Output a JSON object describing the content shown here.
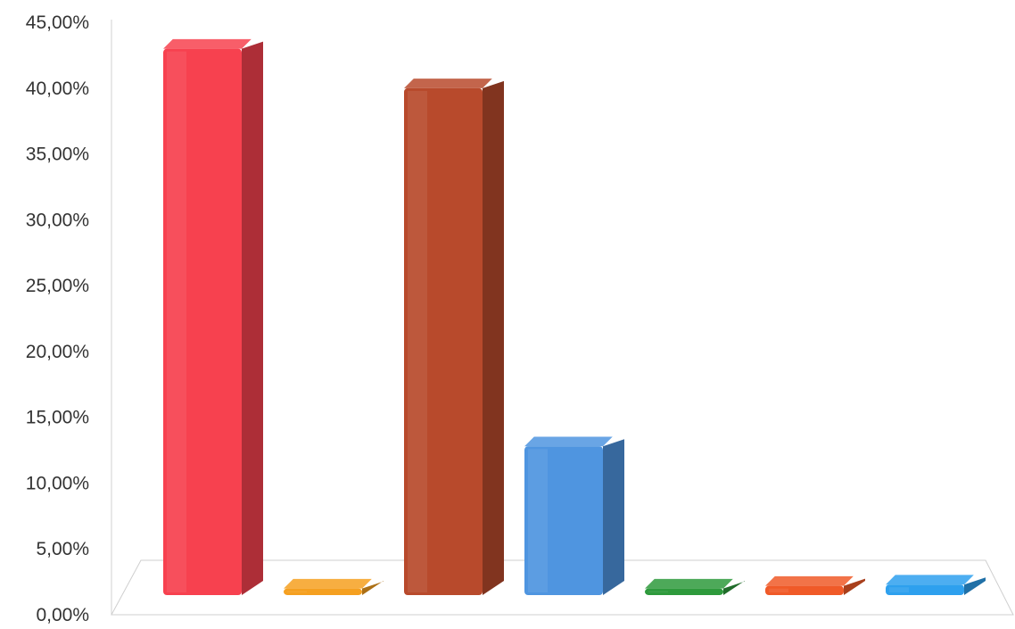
{
  "chart_data": {
    "type": "bar",
    "title": "",
    "xlabel": "",
    "ylabel": "",
    "ylim": [
      0,
      45
    ],
    "y_ticks": [
      "0,00%",
      "5,00%",
      "10,00%",
      "15,00%",
      "20,00%",
      "25,00%",
      "30,00%",
      "35,00%",
      "40,00%",
      "45,00%"
    ],
    "grid": false,
    "legend": "none",
    "three_d": true,
    "categories": [
      "",
      "",
      "",
      "",
      "",
      "",
      ""
    ],
    "values": [
      41.5,
      0.5,
      38.5,
      11.3,
      0.5,
      0.7,
      0.8
    ],
    "colors": [
      "#f7414f",
      "#f5a020",
      "#b84a2c",
      "#4f95e0",
      "#2e9a3c",
      "#f05a28",
      "#2ea0ee"
    ]
  }
}
